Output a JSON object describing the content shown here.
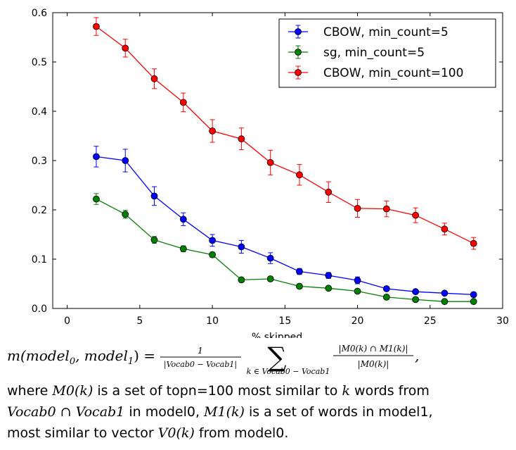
{
  "chart_data": {
    "type": "line",
    "title": "",
    "xlabel": "% skipped",
    "ylabel": "",
    "xlim": [
      -1,
      30
    ],
    "ylim": [
      0,
      0.6
    ],
    "xticks": [
      "0",
      "5",
      "10",
      "15",
      "20",
      "25",
      "30"
    ],
    "xtick_values": [
      0,
      5,
      10,
      15,
      20,
      25,
      30
    ],
    "yticks": [
      "0.0",
      "0.1",
      "0.2",
      "0.3",
      "0.4",
      "0.5",
      "0.6"
    ],
    "ytick_values": [
      0,
      0.1,
      0.2,
      0.3,
      0.4,
      0.5,
      0.6
    ],
    "legend_position": "top-right",
    "x": [
      2,
      4,
      6,
      8,
      10,
      12,
      14,
      16,
      18,
      20,
      22,
      24,
      26,
      28
    ],
    "series": [
      {
        "name": "CBOW, min_count=5",
        "color": "#0000ff",
        "values": [
          0.308,
          0.3,
          0.228,
          0.181,
          0.138,
          0.125,
          0.102,
          0.075,
          0.067,
          0.057,
          0.04,
          0.034,
          0.031,
          0.028
        ],
        "errors": [
          0.021,
          0.023,
          0.019,
          0.013,
          0.012,
          0.013,
          0.011,
          0.006,
          0.006,
          0.007,
          0.003,
          0.003,
          0.003,
          0.003
        ]
      },
      {
        "name": "sg, min_count=5",
        "color": "#008000",
        "values": [
          0.222,
          0.191,
          0.139,
          0.121,
          0.109,
          0.058,
          0.06,
          0.045,
          0.041,
          0.035,
          0.023,
          0.018,
          0.014,
          0.014
        ],
        "errors": [
          0.011,
          0.008,
          0.007,
          0.006,
          0.005,
          0.002,
          0.002,
          0.002,
          0.002,
          0.002,
          0.002,
          0.001,
          0.001,
          0.001
        ]
      },
      {
        "name": "CBOW, min_count=100",
        "color": "#ff0000",
        "values": [
          0.572,
          0.528,
          0.466,
          0.418,
          0.36,
          0.344,
          0.296,
          0.271,
          0.236,
          0.203,
          0.202,
          0.189,
          0.161,
          0.132
        ],
        "errors": [
          0.018,
          0.018,
          0.02,
          0.019,
          0.023,
          0.022,
          0.025,
          0.021,
          0.021,
          0.018,
          0.016,
          0.015,
          0.012,
          0.012
        ]
      }
    ]
  },
  "formula": {
    "lhs": "m(model",
    "sub0": "0",
    "mid": ", model",
    "sub1": "1",
    "eq": ") =",
    "frac_num": "1",
    "frac_den": "|Vocab0 − Vocab1|",
    "sum_symbol": "∑",
    "sum_sub": "k ∈ Vocab0 − Vocab1",
    "term_num": "|M0(k) ∩ M1(k)|",
    "term_den": "|M0(k)|",
    "trail": ","
  },
  "description": {
    "line1_a": "where",
    "line1_m": "M0(k)",
    "line1_b": "is a set of topn=100 most similar to",
    "line1_k": "k",
    "line1_c": "words from",
    "line2_m": "Vocab0 ∩ Vocab1",
    "line2_a": "in model0,",
    "line2_m2": "M1(k)",
    "line2_b": "is a set of words in model1,",
    "line3_a": "most similar to vector",
    "line3_m": "V0(k)",
    "line3_b": "from model0."
  }
}
